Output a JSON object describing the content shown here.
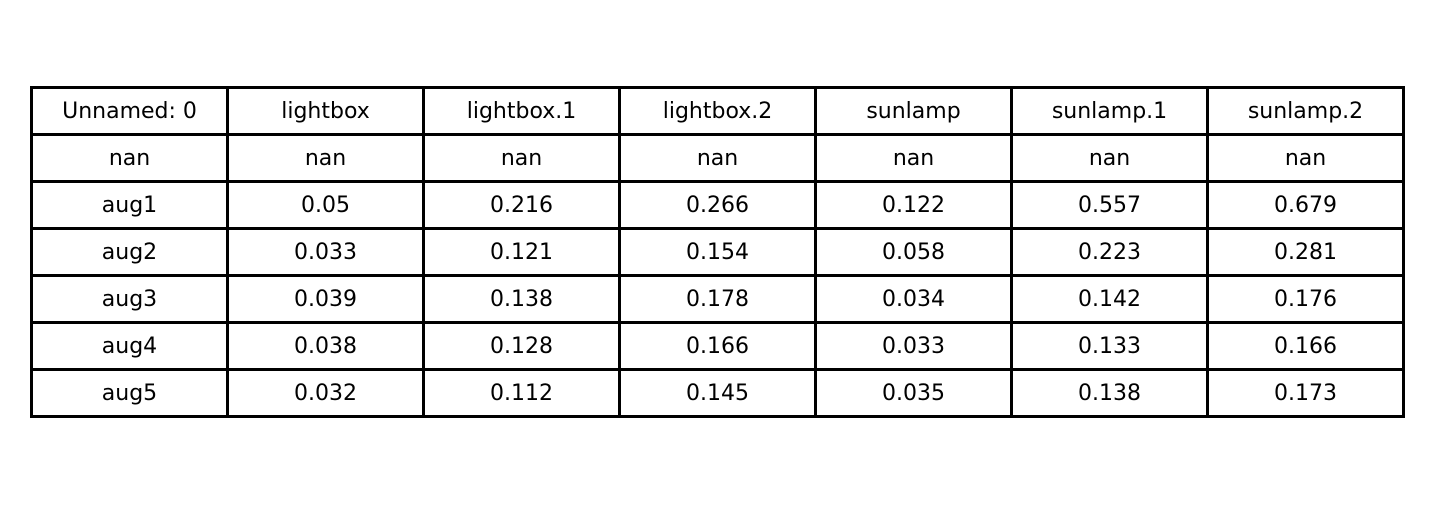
{
  "chart_data": {
    "type": "table",
    "columns": [
      "Unnamed: 0",
      "lightbox",
      "lightbox.1",
      "lightbox.2",
      "sunlamp",
      "sunlamp.1",
      "sunlamp.2"
    ],
    "rows": [
      [
        "nan",
        "nan",
        "nan",
        "nan",
        "nan",
        "nan",
        "nan"
      ],
      [
        "aug1",
        "0.05",
        "0.216",
        "0.266",
        "0.122",
        "0.557",
        "0.679"
      ],
      [
        "aug2",
        "0.033",
        "0.121",
        "0.154",
        "0.058",
        "0.223",
        "0.281"
      ],
      [
        "aug3",
        "0.039",
        "0.138",
        "0.178",
        "0.034",
        "0.142",
        "0.176"
      ],
      [
        "aug4",
        "0.038",
        "0.128",
        "0.166",
        "0.033",
        "0.133",
        "0.166"
      ],
      [
        "aug5",
        "0.032",
        "0.112",
        "0.145",
        "0.035",
        "0.138",
        "0.173"
      ]
    ],
    "border_color": "#000000",
    "text_color": "#000000",
    "background": "#ffffff"
  }
}
